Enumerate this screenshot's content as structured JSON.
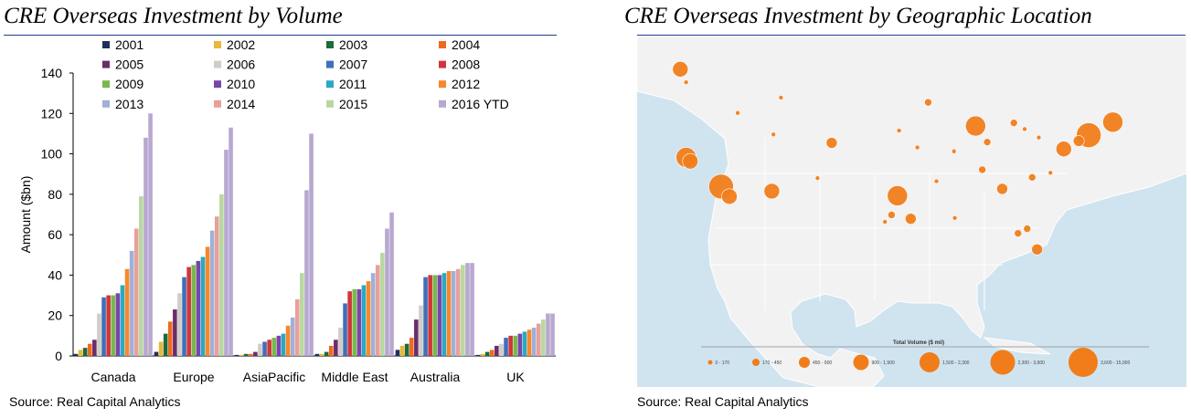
{
  "left_panel": {
    "title": "CRE Overseas Investment by Volume",
    "source": "Source: Real Capital Analytics"
  },
  "right_panel": {
    "title": "CRE Overseas Investment by Geographic Location",
    "source": "Source: Real Capital Analytics",
    "map_legend_title": "Total Volume ($ mil)",
    "map_legend_labels": [
      "0 - 170",
      "170 - 450",
      "450 - 900",
      "900 - 1,500",
      "1,500 - 2,300",
      "2,300 - 3,600",
      "3,600 - 15,000"
    ],
    "colors": {
      "marker": "#f07d1a",
      "water": "#d0e4f0",
      "land": "#f2f2f2",
      "border": "#ffffff"
    }
  },
  "chart_data": {
    "type": "bar",
    "title": "CRE Overseas Investment by Volume",
    "xlabel": "",
    "ylabel": "Amount ($bn)",
    "ylim": [
      0,
      140
    ],
    "yticks": [
      0,
      20,
      40,
      60,
      80,
      100,
      120,
      140
    ],
    "categories": [
      "Canada",
      "Europe",
      "AsiaPacific",
      "Middle East",
      "Australia",
      "UK"
    ],
    "series": [
      {
        "name": "2001",
        "color": "#1f2f5c",
        "values": [
          1,
          2,
          0.5,
          1,
          3,
          0.5
        ]
      },
      {
        "name": "2002",
        "color": "#e8b83a",
        "values": [
          3,
          7,
          0.5,
          1,
          5,
          1
        ]
      },
      {
        "name": "2003",
        "color": "#1e6b3a",
        "values": [
          4,
          11,
          1,
          2,
          6,
          2
        ]
      },
      {
        "name": "2004",
        "color": "#ef6a1c",
        "values": [
          6,
          17,
          1,
          5,
          9,
          3
        ]
      },
      {
        "name": "2005",
        "color": "#6a2d6a",
        "values": [
          8,
          23,
          2,
          8,
          18,
          5
        ]
      },
      {
        "name": "2006",
        "color": "#d0ccc6",
        "values": [
          21,
          31,
          6,
          14,
          25,
          6
        ]
      },
      {
        "name": "2007",
        "color": "#3f6fb8",
        "values": [
          29,
          39,
          7,
          26,
          39,
          9
        ]
      },
      {
        "name": "2008",
        "color": "#d0353a",
        "values": [
          30,
          44,
          8,
          32,
          40,
          10
        ]
      },
      {
        "name": "2009",
        "color": "#79b84a",
        "values": [
          30,
          45,
          9,
          33,
          40,
          10
        ]
      },
      {
        "name": "2010",
        "color": "#7a45a8",
        "values": [
          31,
          47,
          10,
          33,
          40,
          11
        ]
      },
      {
        "name": "2011",
        "color": "#2aa8c4",
        "values": [
          35,
          49,
          11,
          35,
          41,
          12
        ]
      },
      {
        "name": "2012",
        "color": "#f7882a",
        "values": [
          43,
          54,
          15,
          37,
          42,
          13
        ]
      },
      {
        "name": "2013",
        "color": "#a0b0d8",
        "values": [
          52,
          62,
          19,
          41,
          42,
          14
        ]
      },
      {
        "name": "2014",
        "color": "#e8a09a",
        "values": [
          63,
          69,
          28,
          45,
          43,
          16
        ]
      },
      {
        "name": "2015",
        "color": "#b8d8a0",
        "values": [
          79,
          80,
          41,
          51,
          45,
          18
        ]
      },
      {
        "name": "2016 YTD",
        "color": "#b8a8d0",
        "values": [
          108,
          102,
          82,
          63,
          46,
          21
        ]
      },
      {
        "name": "_tail",
        "color": "#b8a8d0",
        "values": [
          120,
          113,
          110,
          71,
          46,
          21
        ]
      }
    ],
    "legend": [
      "2001",
      "2002",
      "2003",
      "2004",
      "2005",
      "2006",
      "2007",
      "2008",
      "2009",
      "2010",
      "2011",
      "2012",
      "2013",
      "2014",
      "2015",
      "2016 YTD"
    ]
  },
  "map_markers": [
    {
      "lon": -123.1,
      "lat": 49.3,
      "size": 4
    },
    {
      "lon": -122.4,
      "lat": 47.6,
      "size": 1
    },
    {
      "lon": -122.4,
      "lat": 37.8,
      "size": 5
    },
    {
      "lon": -118.2,
      "lat": 34.0,
      "size": 6
    },
    {
      "lon": -117.2,
      "lat": 32.7,
      "size": 4
    },
    {
      "lon": -121.9,
      "lat": 37.3,
      "size": 4
    },
    {
      "lon": -112.1,
      "lat": 33.4,
      "size": 4
    },
    {
      "lon": -104.9,
      "lat": 39.7,
      "size": 3
    },
    {
      "lon": -111.9,
      "lat": 40.8,
      "size": 1
    },
    {
      "lon": -116.2,
      "lat": 43.6,
      "size": 1
    },
    {
      "lon": -111.0,
      "lat": 45.6,
      "size": 1
    },
    {
      "lon": -97.0,
      "lat": 32.8,
      "size": 5
    },
    {
      "lon": -95.4,
      "lat": 29.8,
      "size": 3
    },
    {
      "lon": -97.7,
      "lat": 30.3,
      "size": 2
    },
    {
      "lon": -98.5,
      "lat": 29.4,
      "size": 1
    },
    {
      "lon": -90.1,
      "lat": 29.9,
      "size": 1
    },
    {
      "lon": -87.6,
      "lat": 41.9,
      "size": 5
    },
    {
      "lon": -93.3,
      "lat": 44.98,
      "size": 2
    },
    {
      "lon": -90.2,
      "lat": 38.6,
      "size": 1
    },
    {
      "lon": -86.8,
      "lat": 36.2,
      "size": 2
    },
    {
      "lon": -84.4,
      "lat": 33.7,
      "size": 3
    },
    {
      "lon": -80.8,
      "lat": 35.2,
      "size": 2
    },
    {
      "lon": -80.2,
      "lat": 25.8,
      "size": 3
    },
    {
      "lon": -81.4,
      "lat": 28.5,
      "size": 2
    },
    {
      "lon": -82.5,
      "lat": 27.9,
      "size": 2
    },
    {
      "lon": -74.0,
      "lat": 40.7,
      "size": 6
    },
    {
      "lon": -71.1,
      "lat": 42.4,
      "size": 5
    },
    {
      "lon": -77.0,
      "lat": 38.9,
      "size": 4
    },
    {
      "lon": -75.2,
      "lat": 39.95,
      "size": 3
    },
    {
      "lon": -83.0,
      "lat": 42.3,
      "size": 2
    },
    {
      "lon": -86.2,
      "lat": 39.8,
      "size": 2
    },
    {
      "lon": -81.7,
      "lat": 41.5,
      "size": 1
    },
    {
      "lon": -80.0,
      "lat": 40.4,
      "size": 1
    },
    {
      "lon": -96.8,
      "lat": 41.3,
      "size": 1
    },
    {
      "lon": -94.6,
      "lat": 39.1,
      "size": 1
    },
    {
      "lon": -78.6,
      "lat": 35.8,
      "size": 1
    },
    {
      "lon": -106.6,
      "lat": 35.1,
      "size": 1
    },
    {
      "lon": -92.3,
      "lat": 34.7,
      "size": 1
    }
  ]
}
